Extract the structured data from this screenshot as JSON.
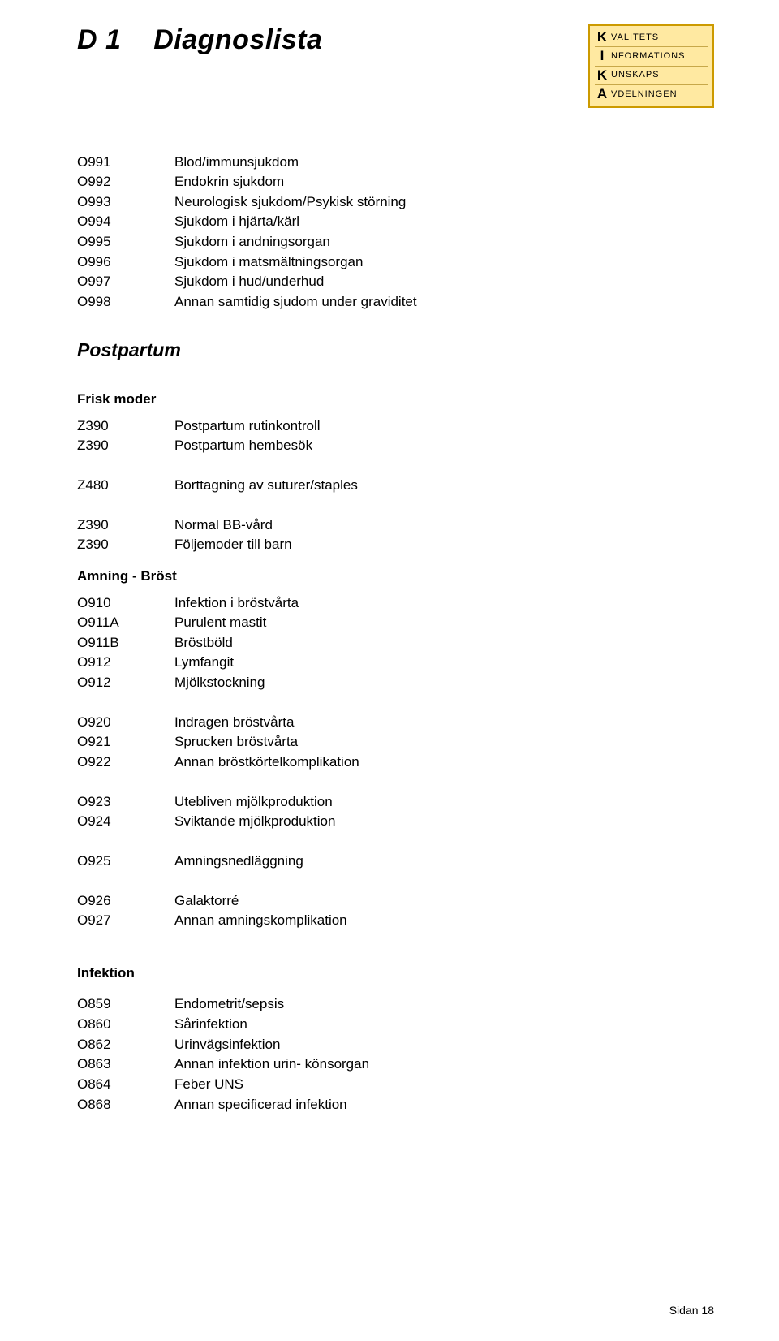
{
  "header": {
    "doc_id": "D 1",
    "title": "Diagnoslista"
  },
  "logo": {
    "rows": [
      {
        "letter": "K",
        "rest": "VALITETS"
      },
      {
        "letter": "I",
        "rest": "NFORMATIONS"
      },
      {
        "letter": "K",
        "rest": "UNSKAPS"
      },
      {
        "letter": "A",
        "rest": "VDELNINGEN"
      }
    ]
  },
  "intro_block": [
    {
      "code": "O991",
      "label": "Blod/immunsjukdom"
    },
    {
      "code": "O992",
      "label": "Endokrin sjukdom"
    },
    {
      "code": "O993",
      "label": "Neurologisk sjukdom/Psykisk störning"
    },
    {
      "code": "O994",
      "label": "Sjukdom i hjärta/kärl"
    },
    {
      "code": "O995",
      "label": "Sjukdom i andningsorgan"
    },
    {
      "code": "O996",
      "label": "Sjukdom i matsmältningsorgan"
    },
    {
      "code": "O997",
      "label": "Sjukdom i hud/underhud"
    },
    {
      "code": "O998",
      "label": "Annan samtidig sjudom under graviditet"
    }
  ],
  "postpartum": {
    "heading": "Postpartum",
    "frisk_moder": {
      "heading": "Frisk moder",
      "group1": [
        {
          "code": "Z390",
          "label": "Postpartum rutinkontroll"
        },
        {
          "code": "Z390",
          "label": "Postpartum hembesök"
        }
      ],
      "group2": [
        {
          "code": "Z480",
          "label": "Borttagning av suturer/staples"
        }
      ],
      "group3": [
        {
          "code": "Z390",
          "label": "Normal BB-vård"
        },
        {
          "code": "Z390",
          "label": "Följemoder till barn"
        }
      ]
    },
    "amning": {
      "heading": "Amning - Bröst",
      "group1": [
        {
          "code": "O910",
          "label": "Infektion i bröstvårta"
        },
        {
          "code": "O911A",
          "label": "Purulent mastit"
        },
        {
          "code": "O911B",
          "label": "Bröstböld"
        },
        {
          "code": "O912",
          "label": "Lymfangit"
        },
        {
          "code": "O912",
          "label": "Mjölkstockning"
        }
      ],
      "group2": [
        {
          "code": "O920",
          "label": "Indragen bröstvårta"
        },
        {
          "code": "O921",
          "label": "Sprucken bröstvårta"
        },
        {
          "code": "O922",
          "label": "Annan bröstkörtelkomplikation"
        }
      ],
      "group3": [
        {
          "code": "O923",
          "label": "Utebliven mjölkproduktion"
        },
        {
          "code": "O924",
          "label": "Sviktande mjölkproduktion"
        }
      ],
      "group4": [
        {
          "code": "O925",
          "label": "Amningsnedläggning"
        }
      ],
      "group5": [
        {
          "code": "O926",
          "label": "Galaktorré"
        },
        {
          "code": "O927",
          "label": "Annan amningskomplikation"
        }
      ]
    }
  },
  "infektion": {
    "heading": "Infektion",
    "group1": [
      {
        "code": "O859",
        "label": "Endometrit/sepsis"
      },
      {
        "code": "O860",
        "label": "Sårinfektion"
      },
      {
        "code": "O862",
        "label": "Urinvägsinfektion"
      },
      {
        "code": "O863",
        "label": "Annan infektion urin- könsorgan"
      },
      {
        "code": "O864",
        "label": "Feber UNS"
      },
      {
        "code": "O868",
        "label": "Annan specificerad infektion"
      }
    ]
  },
  "footer": {
    "page_label": "Sidan 18"
  }
}
